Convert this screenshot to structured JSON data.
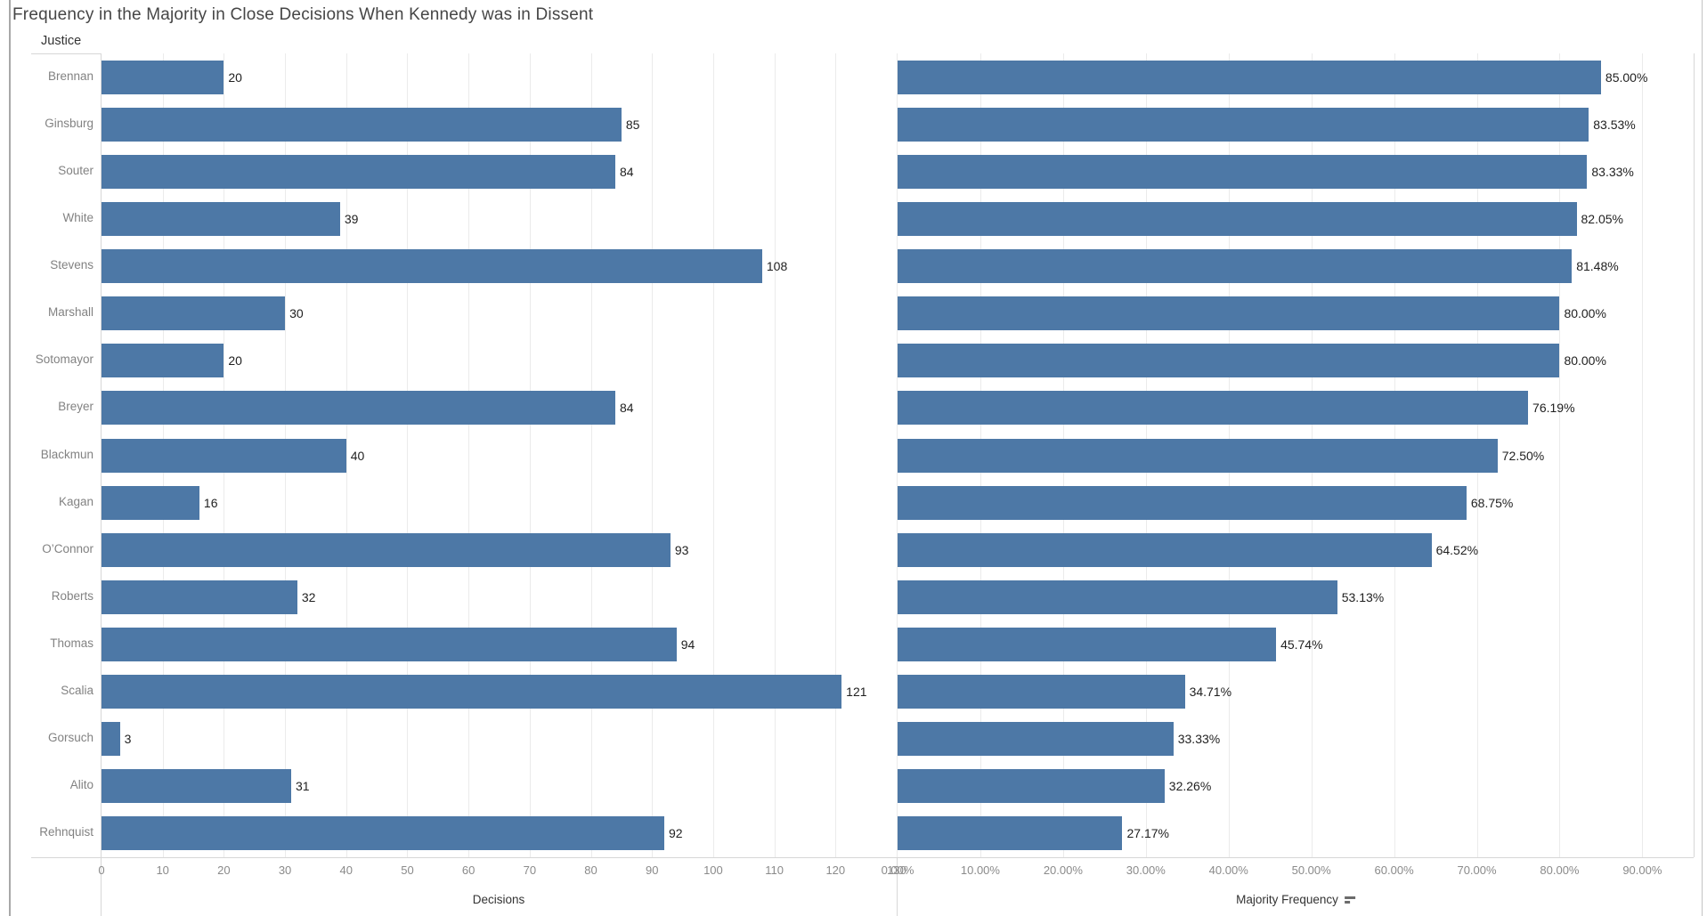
{
  "title": "Frequency in the Majority in Close Decisions When Kennedy was in Dissent",
  "row_header": "Justice",
  "colors": {
    "bar": "#4d78a6",
    "gridline": "#ebebeb",
    "pane_border": "#d7d7d7",
    "value_label": "#1f1f1f",
    "category_label": "#828282",
    "tick_label": "#8a8a8a"
  },
  "axes": {
    "decisions": {
      "title": "Decisions",
      "tick_labels": [
        "0",
        "10",
        "20",
        "30",
        "40",
        "50",
        "60",
        "70",
        "80",
        "90",
        "100",
        "110",
        "120",
        "130"
      ],
      "tick_values": [
        0,
        10,
        20,
        30,
        40,
        50,
        60,
        70,
        80,
        90,
        100,
        110,
        120,
        130
      ]
    },
    "majority_frequency": {
      "title": "Majority Frequency",
      "sort_indicator": "descending",
      "tick_labels": [
        "0.00%",
        "10.00%",
        "20.00%",
        "30.00%",
        "40.00%",
        "50.00%",
        "60.00%",
        "70.00%",
        "80.00%",
        "90.00%"
      ],
      "tick_values": [
        0,
        10,
        20,
        30,
        40,
        50,
        60,
        70,
        80,
        90
      ]
    }
  },
  "chart_data": [
    {
      "type": "bar",
      "orientation": "horizontal",
      "title": "Decisions",
      "xlabel": "Decisions",
      "ylabel": "Justice",
      "grid": true,
      "xlim": [
        0,
        130
      ],
      "categories": [
        "Brennan",
        "Ginsburg",
        "Souter",
        "White",
        "Stevens",
        "Marshall",
        "Sotomayor",
        "Breyer",
        "Blackmun",
        "Kagan",
        "O’Connor",
        "Roberts",
        "Thomas",
        "Scalia",
        "Gorsuch",
        "Alito",
        "Rehnquist"
      ],
      "values": [
        20,
        85,
        84,
        39,
        108,
        30,
        20,
        84,
        40,
        16,
        93,
        32,
        94,
        121,
        3,
        31,
        92
      ],
      "labels": [
        "20",
        "85",
        "84",
        "39",
        "108",
        "30",
        "20",
        "84",
        "40",
        "16",
        "93",
        "32",
        "94",
        "121",
        "3",
        "31",
        "92"
      ]
    },
    {
      "type": "bar",
      "orientation": "horizontal",
      "title": "Majority Frequency",
      "xlabel": "Majority Frequency",
      "ylabel": "Justice",
      "grid": true,
      "xlim": [
        0,
        96.2
      ],
      "categories": [
        "Brennan",
        "Ginsburg",
        "Souter",
        "White",
        "Stevens",
        "Marshall",
        "Sotomayor",
        "Breyer",
        "Blackmun",
        "Kagan",
        "O’Connor",
        "Roberts",
        "Thomas",
        "Scalia",
        "Gorsuch",
        "Alito",
        "Rehnquist"
      ],
      "values": [
        85.0,
        83.53,
        83.33,
        82.05,
        81.48,
        80.0,
        80.0,
        76.19,
        72.5,
        68.75,
        64.52,
        53.13,
        45.74,
        34.71,
        33.33,
        32.26,
        27.17
      ],
      "labels": [
        "85.00%",
        "83.53%",
        "83.33%",
        "82.05%",
        "81.48%",
        "80.00%",
        "80.00%",
        "76.19%",
        "72.50%",
        "68.75%",
        "64.52%",
        "53.13%",
        "45.74%",
        "34.71%",
        "33.33%",
        "32.26%",
        "27.17%"
      ]
    }
  ]
}
